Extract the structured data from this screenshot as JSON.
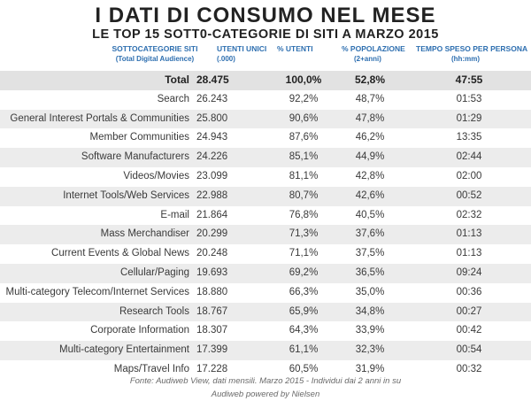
{
  "title": "I DATI DI CONSUMO NEL MESE",
  "subtitle": "LE TOP 15 SOTT0-CATEGORIE DI SITI A MARZO 2015",
  "headers": {
    "sottocategorie": "SOTTOCATEGORIE SITI",
    "sottocategorie_sub": "(Total Digital Audience)",
    "utenti_unici": "UTENTI UNICI",
    "utenti_unici_sub": "(.000)",
    "pct_utenti": "% UTENTI",
    "pct_popolazione": "% POPOLAZIONE",
    "pct_popolazione_sub": "(2+anni)",
    "tempo": "TEMPO SPESO PER PERSONA",
    "tempo_sub": "(hh:mm)"
  },
  "total": {
    "name": "Total",
    "utenti": "28.475",
    "pct": "100,0%",
    "pop": "52,8%",
    "tempo": "47:55"
  },
  "rows": [
    {
      "name": "Search",
      "utenti": "26.243",
      "pct": "92,2%",
      "pop": "48,7%",
      "tempo": "01:53"
    },
    {
      "name": "General Interest Portals & Communities",
      "utenti": "25.800",
      "pct": "90,6%",
      "pop": "47,8%",
      "tempo": "01:29"
    },
    {
      "name": "Member Communities",
      "utenti": "24.943",
      "pct": "87,6%",
      "pop": "46,2%",
      "tempo": "13:35"
    },
    {
      "name": "Software Manufacturers",
      "utenti": "24.226",
      "pct": "85,1%",
      "pop": "44,9%",
      "tempo": "02:44"
    },
    {
      "name": "Videos/Movies",
      "utenti": "23.099",
      "pct": "81,1%",
      "pop": "42,8%",
      "tempo": "02:00"
    },
    {
      "name": "Internet Tools/Web Services",
      "utenti": "22.988",
      "pct": "80,7%",
      "pop": "42,6%",
      "tempo": "00:52"
    },
    {
      "name": "E-mail",
      "utenti": "21.864",
      "pct": "76,8%",
      "pop": "40,5%",
      "tempo": "02:32"
    },
    {
      "name": "Mass Merchandiser",
      "utenti": "20.299",
      "pct": "71,3%",
      "pop": "37,6%",
      "tempo": "01:13"
    },
    {
      "name": "Current Events & Global News",
      "utenti": "20.248",
      "pct": "71,1%",
      "pop": "37,5%",
      "tempo": "01:13"
    },
    {
      "name": "Cellular/Paging",
      "utenti": "19.693",
      "pct": "69,2%",
      "pop": "36,5%",
      "tempo": "09:24"
    },
    {
      "name": "Multi-category Telecom/Internet Services",
      "utenti": "18.880",
      "pct": "66,3%",
      "pop": "35,0%",
      "tempo": "00:36"
    },
    {
      "name": "Research Tools",
      "utenti": "18.767",
      "pct": "65,9%",
      "pop": "34,8%",
      "tempo": "00:27"
    },
    {
      "name": "Corporate Information",
      "utenti": "18.307",
      "pct": "64,3%",
      "pop": "33,9%",
      "tempo": "00:42"
    },
    {
      "name": "Multi-category Entertainment",
      "utenti": "17.399",
      "pct": "61,1%",
      "pop": "32,3%",
      "tempo": "00:54"
    },
    {
      "name": "Maps/Travel Info",
      "utenti": "17.228",
      "pct": "60,5%",
      "pop": "31,9%",
      "tempo": "00:32"
    }
  ],
  "footer": {
    "source": "Fonte: Audiweb View, dati mensili. Marzo 2015 - Individui dai 2 anni in su",
    "credit": "Audiweb powered by Nielsen"
  },
  "colors": {
    "header_blue": "#2e6fb0",
    "stripe": "#ececec"
  }
}
